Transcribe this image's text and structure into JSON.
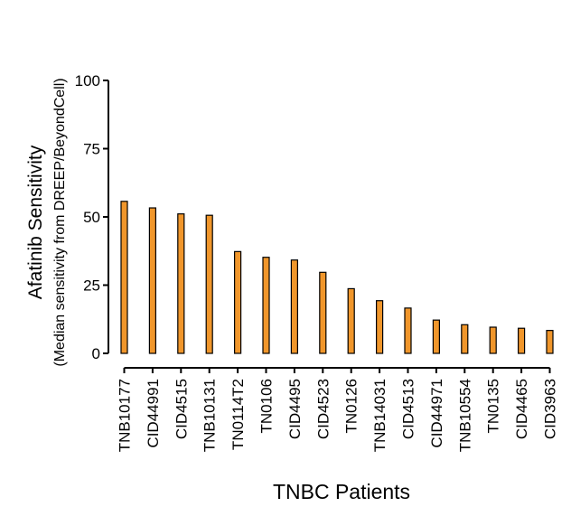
{
  "chart_data": {
    "type": "bar",
    "title": "",
    "xlabel": "TNBC Patients",
    "ylabel": "Afatinib Sensitivity",
    "ylabel_sub": "(Median sensitivity from DREEP/BeyondCell)",
    "ylim": [
      0,
      100
    ],
    "yticks": [
      0,
      25,
      50,
      75,
      100
    ],
    "grid": false,
    "legend": "none",
    "categories": [
      "TNB10177",
      "CID44991",
      "CID4515",
      "TNB10131",
      "TN0114T2",
      "TN0106",
      "CID4495",
      "CID4523",
      "TN0126",
      "TNB14031",
      "CID4513",
      "CID44971",
      "TNB10554",
      "TN0135",
      "CID4465",
      "CID3963"
    ],
    "values": [
      55.7,
      53.3,
      51.1,
      50.6,
      37.3,
      35.2,
      34.2,
      29.7,
      23.7,
      19.3,
      16.6,
      12.2,
      10.5,
      9.6,
      9.2,
      8.4
    ]
  },
  "colors": {
    "bar_fill": "#F0962B",
    "bar_stroke": "#000000",
    "axis": "#000000"
  }
}
